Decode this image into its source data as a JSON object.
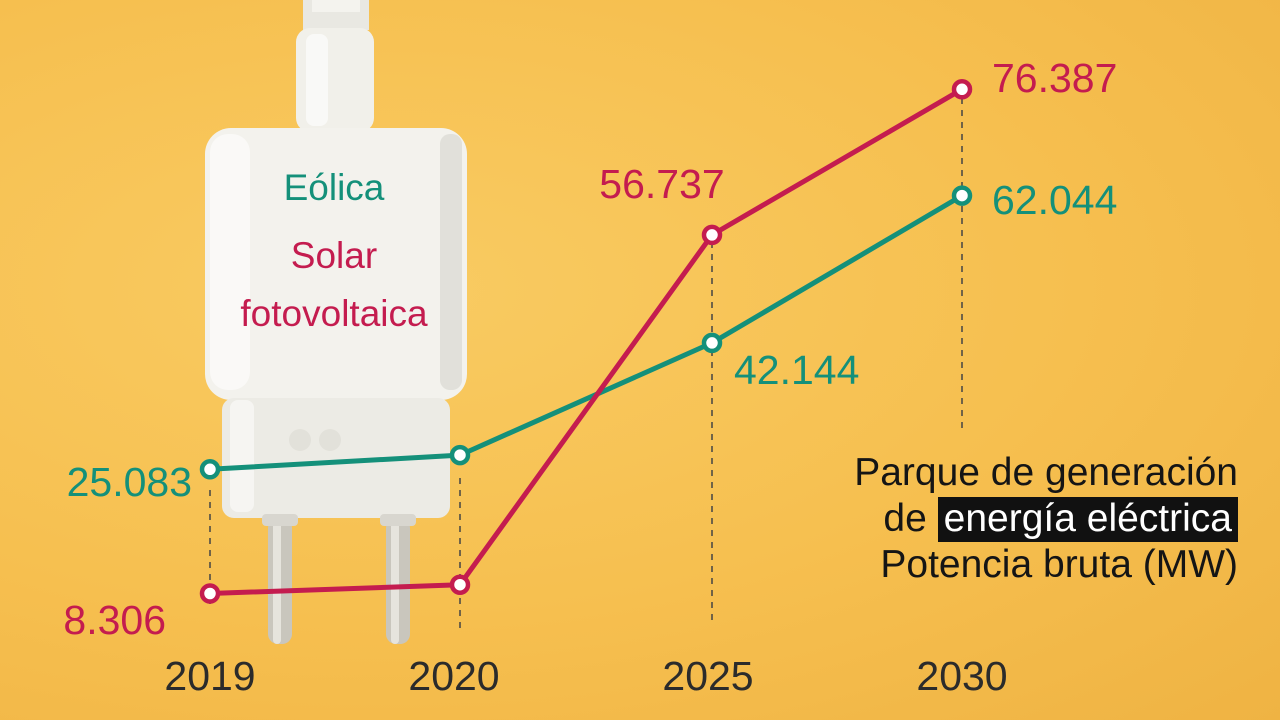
{
  "colors": {
    "wind": "#14907a",
    "solar": "#c41c4f",
    "background": "#f7c453",
    "guide": "#444444"
  },
  "legend": {
    "wind": "Eólica",
    "solar_line1": "Solar",
    "solar_line2": "fotovoltaica"
  },
  "caption": {
    "line1": "Parque de generación",
    "line2_prefix": "de",
    "line2_highlight": "energía eléctrica",
    "line3": "Potencia bruta (MW)"
  },
  "chart_data": {
    "type": "line",
    "title": "Parque de generación de energía eléctrica",
    "ylabel": "Potencia bruta (MW)",
    "categories": [
      "2019",
      "2020",
      "2025",
      "2030"
    ],
    "series": [
      {
        "name": "Eólica",
        "color": "#14907a",
        "values": [
          25083,
          27000,
          42144,
          62044
        ],
        "labels": [
          "25.083",
          "",
          "42.144",
          "62.044"
        ]
      },
      {
        "name": "Solar fotovoltaica",
        "color": "#c41c4f",
        "values": [
          8306,
          9500,
          56737,
          76387
        ],
        "labels": [
          "8.306",
          "",
          "56.737",
          "76.387"
        ]
      }
    ],
    "grid": false,
    "legend": "top-left"
  }
}
